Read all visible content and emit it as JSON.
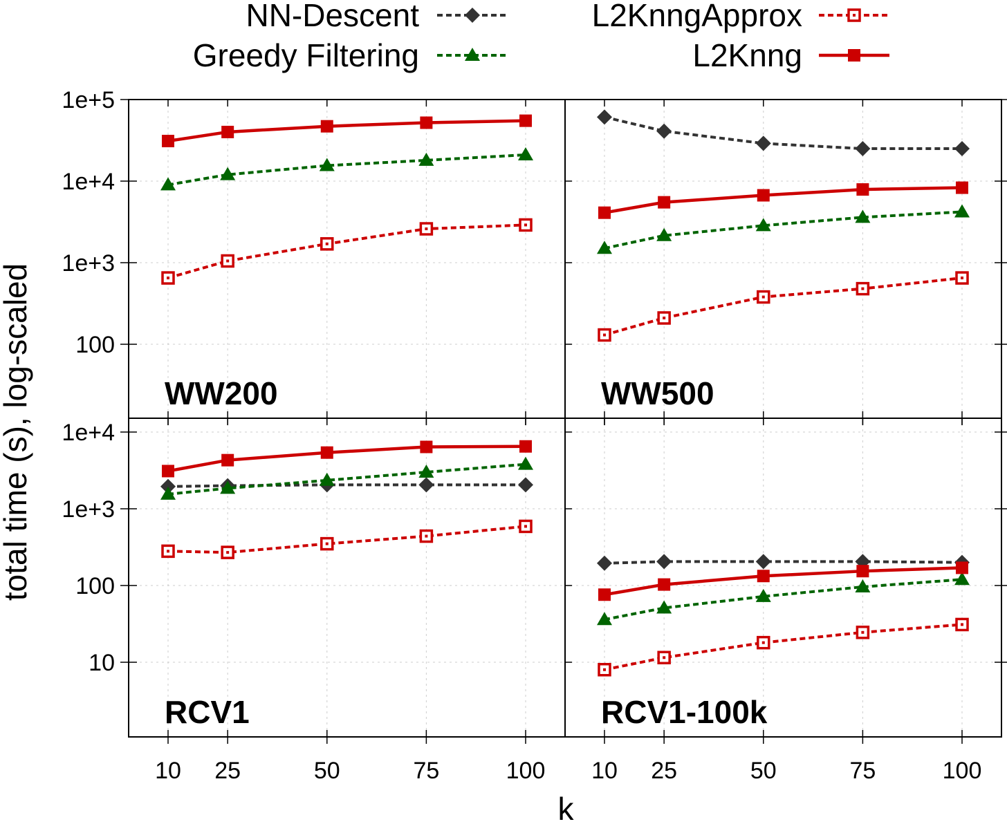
{
  "chart_data": {
    "type": "line",
    "xlabel": "k",
    "ylabel": "total time (s),  log-scaled",
    "x": [
      10,
      25,
      50,
      75,
      100
    ],
    "x_tick_labels": [
      "10",
      "25",
      "50",
      "75",
      "100"
    ],
    "y_scale": "log",
    "grid": true,
    "legend_placement": "top",
    "legend": [
      {
        "name": "NN-Descent",
        "color": "#333333",
        "marker": "diamond",
        "dash": "dashed"
      },
      {
        "name": "Greedy Filtering",
        "color": "#006400",
        "marker": "triangle",
        "dash": "dashed"
      },
      {
        "name": "L2KnngApprox",
        "color": "#cc0000",
        "marker": "hollow-square",
        "dash": "dashed"
      },
      {
        "name": "L2Knng",
        "color": "#cc0000",
        "marker": "square",
        "dash": "solid"
      }
    ],
    "panels": [
      {
        "title": "WW200",
        "ylim": [
          10,
          100000
        ],
        "y_ticks": [
          100,
          1000,
          10000,
          100000
        ],
        "y_tick_labels": [
          "100",
          "1e+3",
          "1e+4",
          "1e+5"
        ],
        "series": [
          {
            "name": "Greedy Filtering",
            "values": [
              9000,
              12000,
              15500,
              18000,
              21000
            ]
          },
          {
            "name": "L2KnngApprox",
            "values": [
              650,
              1050,
              1700,
              2600,
              2900
            ]
          },
          {
            "name": "L2Knng",
            "values": [
              31000,
              40000,
              47000,
              52000,
              55000
            ]
          }
        ]
      },
      {
        "title": "WW500",
        "ylim": [
          10,
          100000
        ],
        "y_ticks": [
          100,
          1000,
          10000,
          100000
        ],
        "y_tick_labels": [
          "100",
          "1e+3",
          "1e+4",
          "1e+5"
        ],
        "series": [
          {
            "name": "NN-Descent",
            "values": [
              61000,
              41000,
              29000,
              25000,
              25000
            ]
          },
          {
            "name": "Greedy Filtering",
            "values": [
              1500,
              2150,
              2850,
              3600,
              4200
            ]
          },
          {
            "name": "L2KnngApprox",
            "values": [
              130,
              210,
              380,
              480,
              650
            ]
          },
          {
            "name": "L2Knng",
            "values": [
              4100,
              5500,
              6700,
              7900,
              8300
            ]
          }
        ]
      },
      {
        "title": "RCV1",
        "ylim": [
          1,
          10000
        ],
        "y_ticks": [
          10,
          100,
          1000,
          10000
        ],
        "y_tick_labels": [
          "10",
          "100",
          "1e+3",
          "1e+4"
        ],
        "series": [
          {
            "name": "NN-Descent",
            "values": [
              1950,
              2000,
              2050,
              2050,
              2050
            ]
          },
          {
            "name": "Greedy Filtering",
            "values": [
              1550,
              1850,
              2350,
              3000,
              3800
            ]
          },
          {
            "name": "L2KnngApprox",
            "values": [
              280,
              270,
              350,
              440,
              590
            ]
          },
          {
            "name": "L2Knng",
            "values": [
              3100,
              4300,
              5400,
              6400,
              6500
            ]
          }
        ]
      },
      {
        "title": "RCV1-100k",
        "ylim": [
          1,
          10000
        ],
        "y_ticks": [
          10,
          100,
          1000,
          10000
        ],
        "y_tick_labels": [
          "10",
          "100",
          "1e+3",
          "1e+4"
        ],
        "series": [
          {
            "name": "NN-Descent",
            "values": [
              195,
              205,
              205,
              205,
              200
            ]
          },
          {
            "name": "Greedy Filtering",
            "values": [
              36,
              51,
              72,
              96,
              120
            ]
          },
          {
            "name": "L2KnngApprox",
            "values": [
              8,
              11.5,
              18,
              24.5,
              31
            ]
          },
          {
            "name": "L2Knng",
            "values": [
              76,
              103,
              133,
              154,
              170
            ]
          }
        ]
      }
    ]
  }
}
